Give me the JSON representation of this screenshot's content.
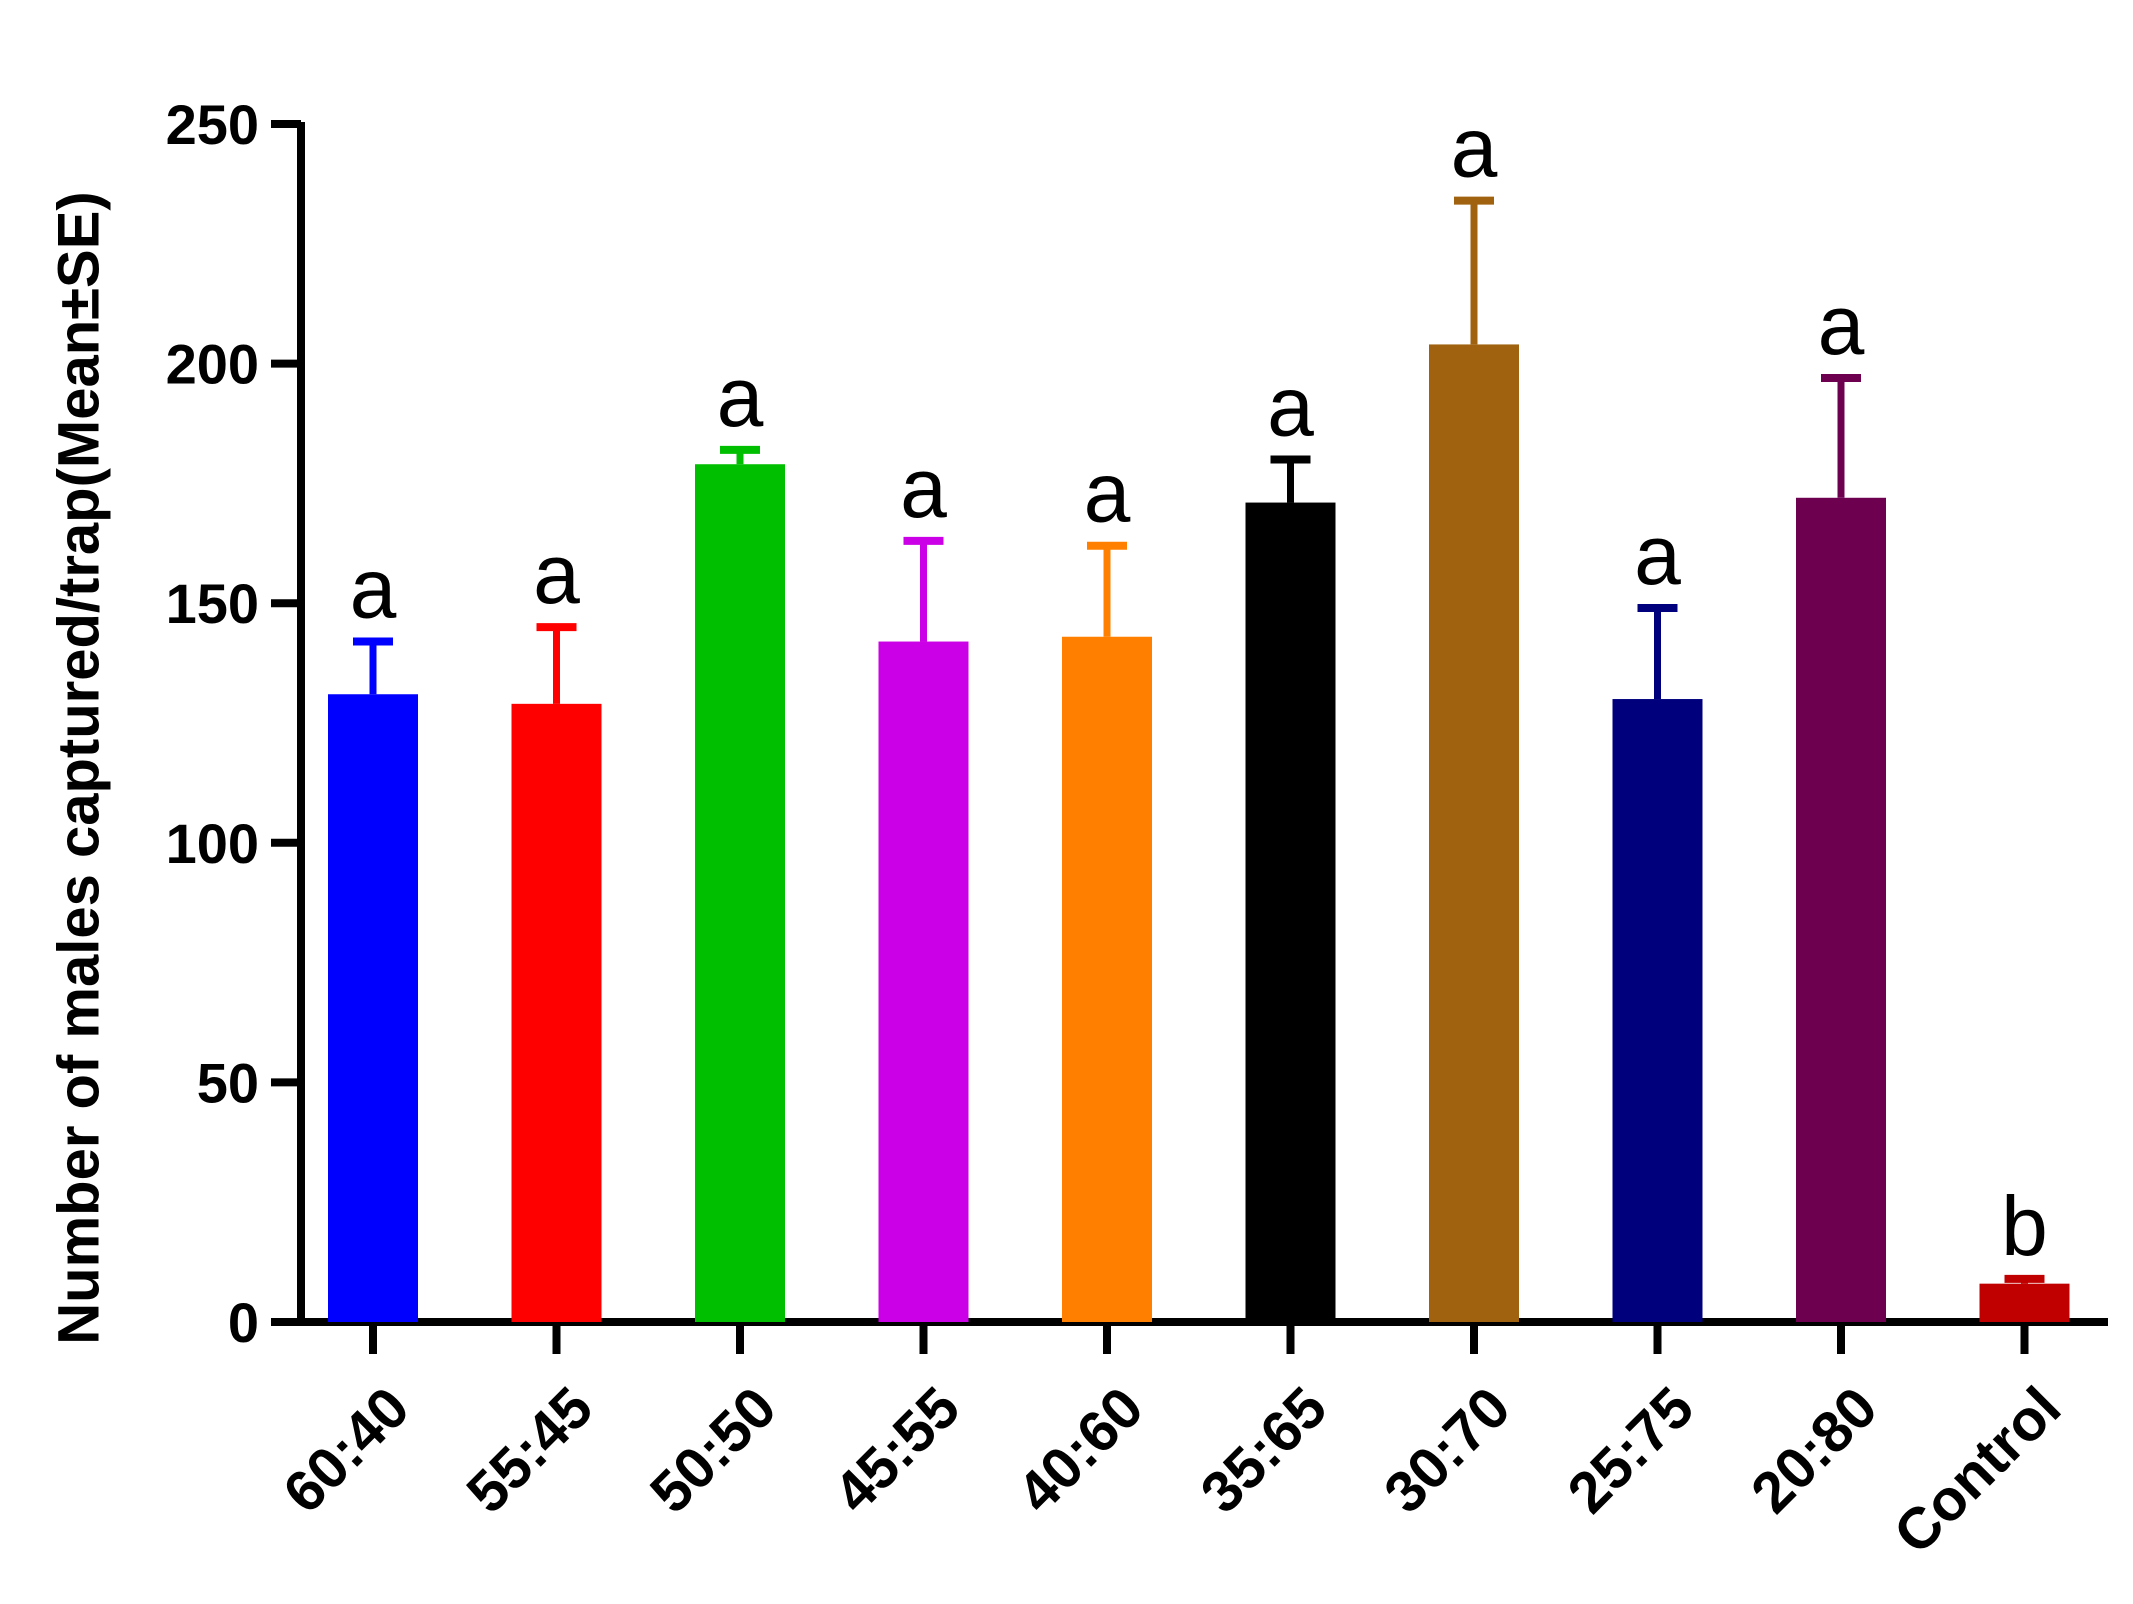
{
  "chart_data": {
    "type": "bar",
    "title": "",
    "xlabel": "",
    "ylabel": "Number of males captured/trap(Mean±SE)",
    "ylim": [
      0,
      250
    ],
    "yticks": [
      0,
      50,
      100,
      150,
      200,
      250
    ],
    "grid": false,
    "categories": [
      "60:40",
      "55:45",
      "50:50",
      "45:55",
      "40:60",
      "35:65",
      "30:70",
      "25:75",
      "20:80",
      "Control"
    ],
    "values": [
      131,
      129,
      179,
      142,
      143,
      171,
      204,
      130,
      172,
      8
    ],
    "errors": [
      11,
      16,
      3,
      21,
      19,
      9,
      30,
      19,
      25,
      1
    ],
    "significance": [
      "a",
      "a",
      "a",
      "a",
      "a",
      "a",
      "a",
      "a",
      "a",
      "b"
    ],
    "colors": [
      "#0000FF",
      "#FF0000",
      "#00BF00",
      "#CC00E6",
      "#FF8000",
      "#000000",
      "#A0620F",
      "#00007D",
      "#6E0050",
      "#C00000"
    ]
  }
}
